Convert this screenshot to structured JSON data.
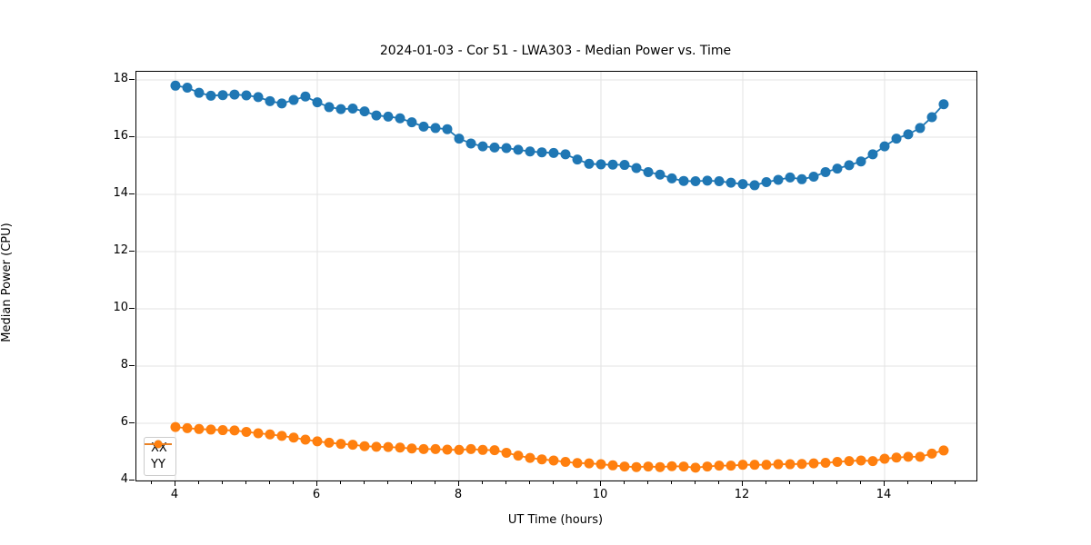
{
  "chart_data": {
    "type": "line",
    "title": "2024-01-03 - Cor 51 - LWA303 - Median Power vs. Time",
    "xlabel": "UT Time (hours)",
    "ylabel": "Median Power (CPU)",
    "xlim": [
      3.449,
      15.295
    ],
    "ylim": [
      4.0,
      18.286
    ],
    "x_ticks": [
      4,
      6,
      8,
      10,
      12,
      14
    ],
    "x_minor_tick_step": 0.33333,
    "y_ticks": [
      4,
      6,
      8,
      10,
      12,
      14,
      16,
      18
    ],
    "grid": true,
    "legend_position": "lower left",
    "x": [
      4.0,
      4.167,
      4.333,
      4.5,
      4.667,
      4.833,
      5.0,
      5.167,
      5.333,
      5.5,
      5.667,
      5.833,
      6.0,
      6.167,
      6.333,
      6.5,
      6.667,
      6.833,
      7.0,
      7.167,
      7.333,
      7.5,
      7.667,
      7.833,
      8.0,
      8.167,
      8.333,
      8.5,
      8.667,
      8.833,
      9.0,
      9.167,
      9.333,
      9.5,
      9.667,
      9.833,
      10.0,
      10.167,
      10.333,
      10.5,
      10.667,
      10.833,
      11.0,
      11.167,
      11.333,
      11.5,
      11.667,
      11.833,
      12.0,
      12.167,
      12.333,
      12.5,
      12.667,
      12.833,
      13.0,
      13.167,
      13.333,
      13.5,
      13.667,
      13.833,
      14.0,
      14.167,
      14.333,
      14.5,
      14.667,
      14.833
    ],
    "series": [
      {
        "name": "XX",
        "color": "#1f77b4",
        "values": [
          17.8,
          17.73,
          17.55,
          17.45,
          17.47,
          17.49,
          17.46,
          17.4,
          17.26,
          17.18,
          17.3,
          17.42,
          17.22,
          17.05,
          16.98,
          17.0,
          16.9,
          16.76,
          16.72,
          16.66,
          16.52,
          16.37,
          16.32,
          16.28,
          15.95,
          15.78,
          15.68,
          15.64,
          15.62,
          15.56,
          15.5,
          15.47,
          15.45,
          15.4,
          15.22,
          15.07,
          15.05,
          15.04,
          15.03,
          14.92,
          14.78,
          14.69,
          14.56,
          14.47,
          14.46,
          14.48,
          14.46,
          14.41,
          14.36,
          14.32,
          14.43,
          14.51,
          14.59,
          14.53,
          14.62,
          14.78,
          14.9,
          15.02,
          15.15,
          15.4,
          15.68,
          15.95,
          16.1,
          16.32,
          16.7,
          17.15
        ]
      },
      {
        "name": "YY",
        "color": "#ff7f0e",
        "values": [
          5.87,
          5.83,
          5.8,
          5.78,
          5.76,
          5.75,
          5.7,
          5.65,
          5.61,
          5.56,
          5.5,
          5.43,
          5.37,
          5.32,
          5.28,
          5.25,
          5.2,
          5.18,
          5.17,
          5.15,
          5.12,
          5.1,
          5.1,
          5.08,
          5.07,
          5.1,
          5.07,
          5.06,
          4.97,
          4.87,
          4.79,
          4.74,
          4.7,
          4.65,
          4.61,
          4.6,
          4.57,
          4.53,
          4.49,
          4.47,
          4.49,
          4.47,
          4.5,
          4.49,
          4.45,
          4.49,
          4.52,
          4.52,
          4.55,
          4.55,
          4.55,
          4.57,
          4.57,
          4.58,
          4.6,
          4.62,
          4.65,
          4.68,
          4.7,
          4.68,
          4.76,
          4.8,
          4.83,
          4.83,
          4.94,
          5.05
        ]
      }
    ],
    "marker": "circle",
    "marker_radius": 5.5,
    "line_width": 1.8,
    "grid_color": "#e3e3e3",
    "spine_color": "#000000",
    "background_color": "#ffffff"
  }
}
